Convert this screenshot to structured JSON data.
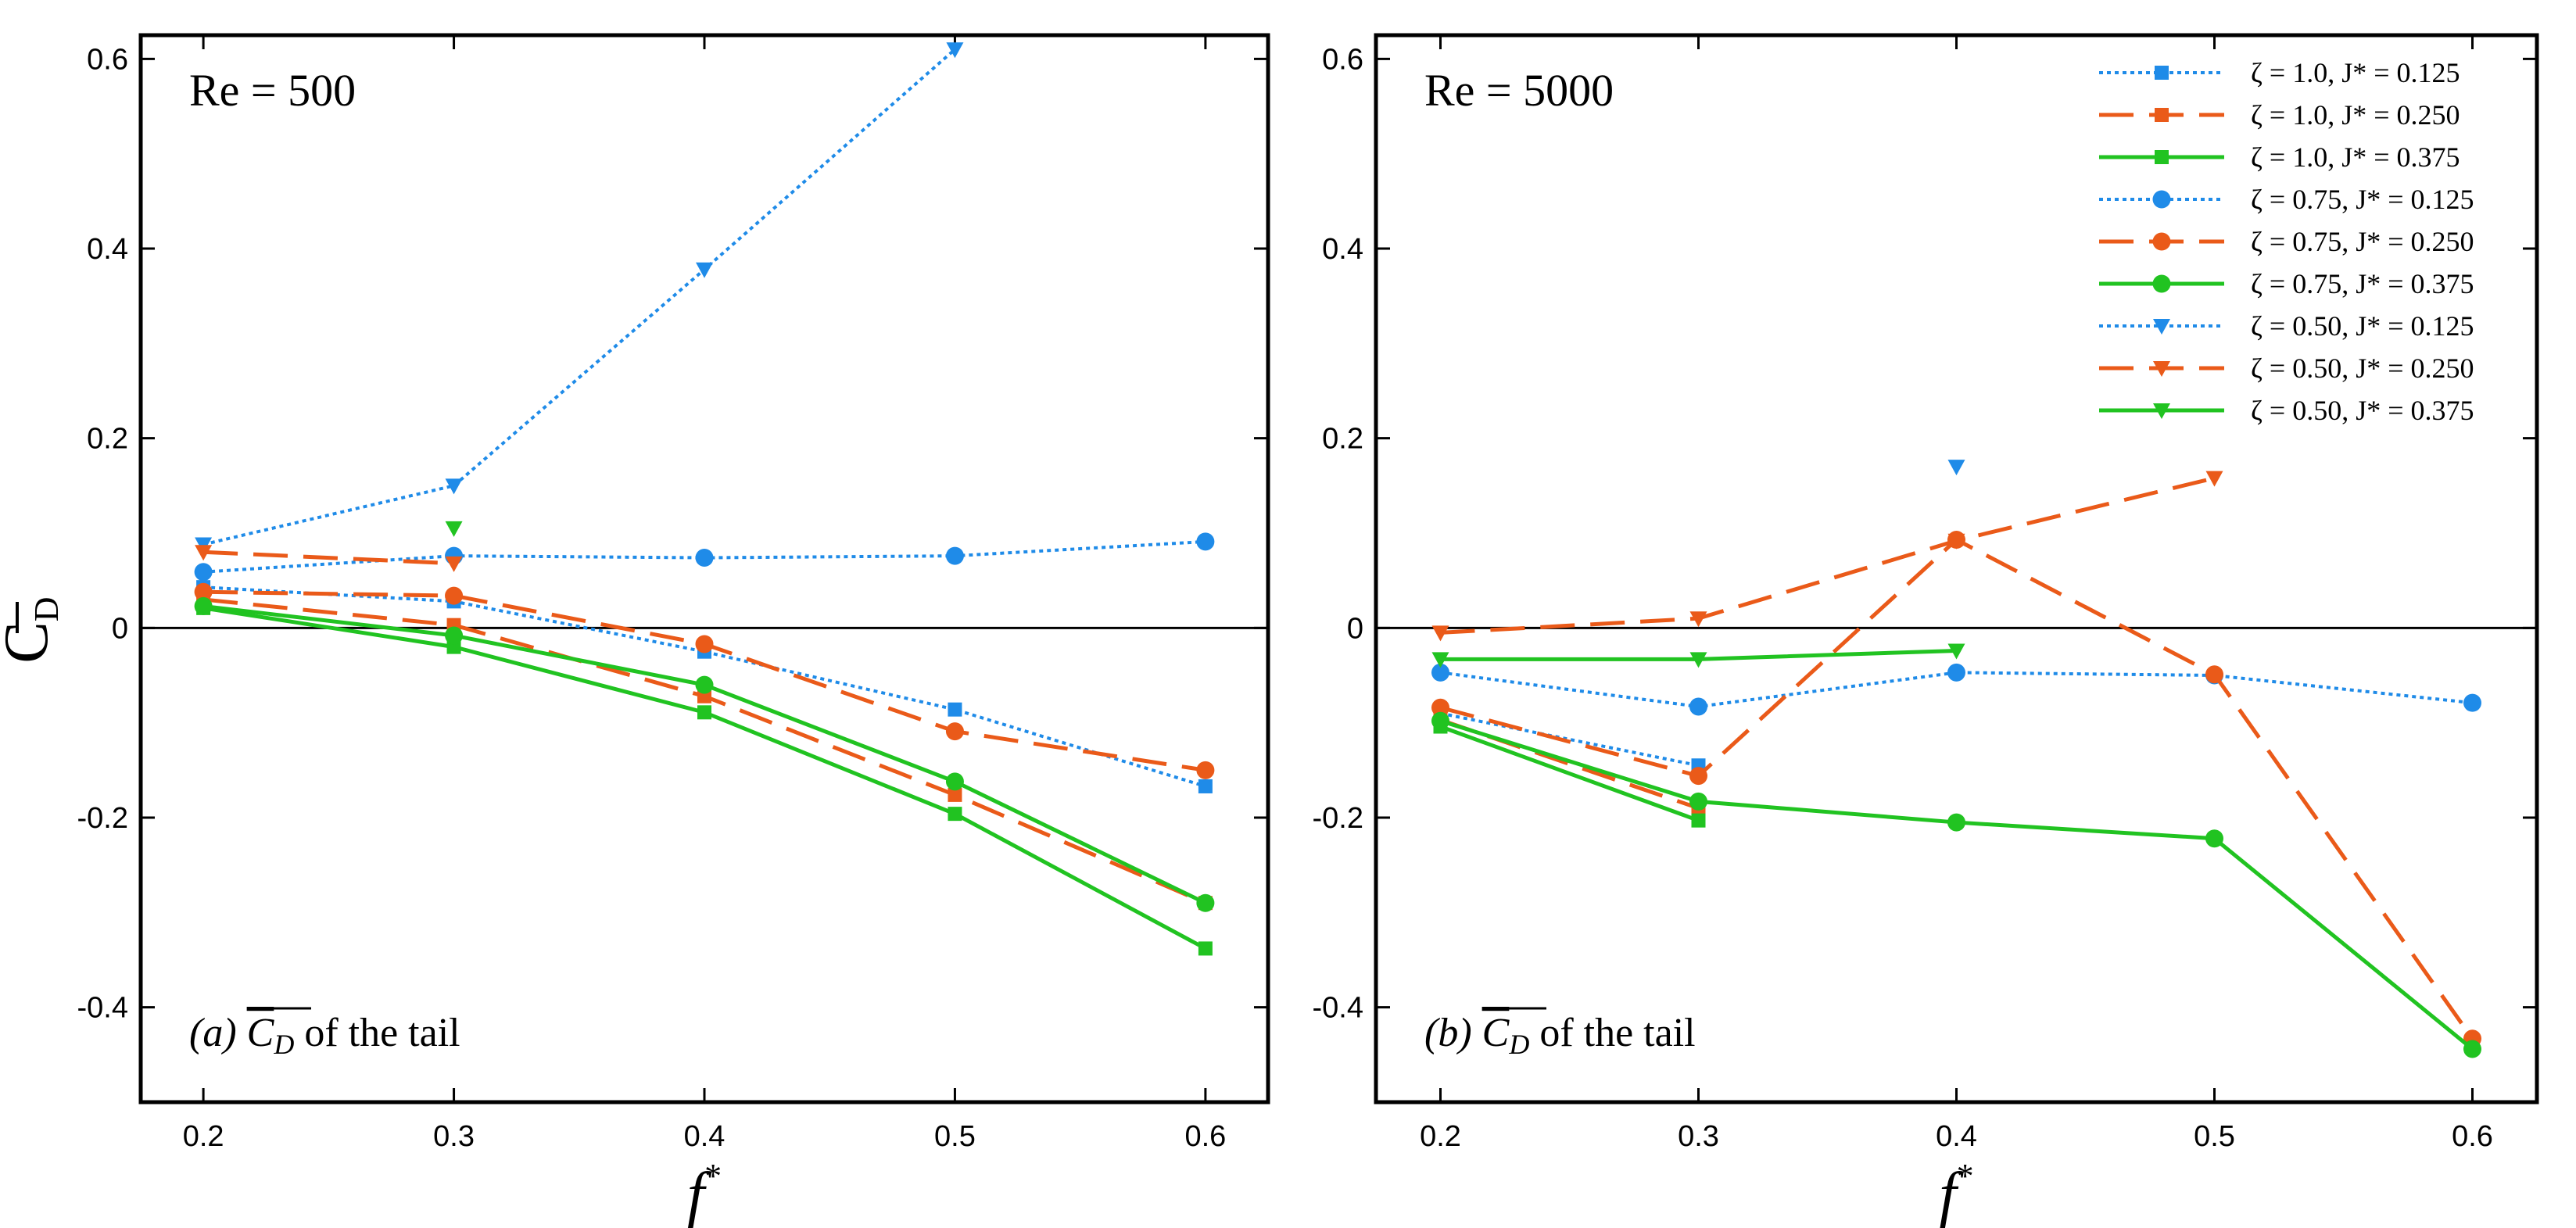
{
  "chart_data": [
    {
      "type": "line",
      "panel_id": "a",
      "title": "Re = 500",
      "caption_label": "(a)",
      "caption_symbol": "C_D",
      "caption_text": "of the tail",
      "xlabel": "f*",
      "ylabel": "C̄_D",
      "xlim": [
        0.175,
        0.625
      ],
      "ylim": [
        -0.5,
        0.625
      ],
      "xticks": [
        0.2,
        0.3,
        0.4,
        0.5,
        0.6
      ],
      "xtick_labels": [
        "0.2",
        "0.3",
        "0.4",
        "0.5",
        "0.6"
      ],
      "yticks": [
        -0.4,
        -0.2,
        0,
        0.2,
        0.4,
        0.6
      ],
      "ytick_labels": [
        "-0.4",
        "-0.2",
        "0",
        "0.2",
        "0.4",
        "0.6"
      ],
      "zero_line": true,
      "series": [
        {
          "name": "ζ = 1.0, J* = 0.125",
          "color": "#1f8be8",
          "style": "dotted",
          "marker": "square",
          "x": [
            0.2,
            0.3,
            0.4,
            0.5,
            0.6
          ],
          "y": [
            0.043,
            0.028,
            -0.025,
            -0.086,
            -0.167
          ]
        },
        {
          "name": "ζ = 1.0, J* = 0.250",
          "color": "#ea5a19",
          "style": "dashed",
          "marker": "square",
          "x": [
            0.2,
            0.3,
            0.4,
            0.5,
            0.6
          ],
          "y": [
            0.03,
            0.003,
            -0.072,
            -0.176,
            -0.29
          ]
        },
        {
          "name": "ζ = 1.0, J* = 0.375",
          "color": "#21c321",
          "style": "solid",
          "marker": "square",
          "x": [
            0.2,
            0.3,
            0.4,
            0.5,
            0.6
          ],
          "y": [
            0.021,
            -0.02,
            -0.089,
            -0.196,
            -0.338
          ]
        },
        {
          "name": "ζ = 0.75, J* = 0.125",
          "color": "#1f8be8",
          "style": "dotted",
          "marker": "circle",
          "x": [
            0.2,
            0.3,
            0.4,
            0.5,
            0.6
          ],
          "y": [
            0.059,
            0.076,
            0.074,
            0.076,
            0.091
          ]
        },
        {
          "name": "ζ = 0.75, J* = 0.250",
          "color": "#ea5a19",
          "style": "dashed",
          "marker": "circle",
          "x": [
            0.2,
            0.3,
            0.4,
            0.5,
            0.6
          ],
          "y": [
            0.038,
            0.034,
            -0.017,
            -0.109,
            -0.15
          ]
        },
        {
          "name": "ζ = 0.75, J* = 0.375",
          "color": "#21c321",
          "style": "solid",
          "marker": "circle",
          "x": [
            0.2,
            0.3,
            0.4,
            0.5,
            0.6
          ],
          "y": [
            0.023,
            -0.008,
            -0.06,
            -0.162,
            -0.29
          ]
        },
        {
          "name": "ζ = 0.50, J* = 0.125",
          "color": "#1f8be8",
          "style": "dotted",
          "marker": "triangle-down",
          "x": [
            0.2,
            0.3,
            0.4,
            0.5
          ],
          "y": [
            0.088,
            0.15,
            0.378,
            0.61
          ]
        },
        {
          "name": "ζ = 0.50, J* = 0.250",
          "color": "#ea5a19",
          "style": "dashed",
          "marker": "triangle-down",
          "x": [
            0.2,
            0.3
          ],
          "y": [
            0.08,
            0.068
          ]
        },
        {
          "name": "ζ = 0.50, J* = 0.375",
          "color": "#21c321",
          "style": "solid",
          "marker": "triangle-down",
          "x": [
            0.3
          ],
          "y": [
            0.105
          ]
        }
      ]
    },
    {
      "type": "line",
      "panel_id": "b",
      "title": "Re = 5000",
      "caption_label": "(b)",
      "caption_symbol": "C_D",
      "caption_text": "of the tail",
      "xlabel": "f*",
      "ylabel": "",
      "xlim": [
        0.175,
        0.625
      ],
      "ylim": [
        -0.5,
        0.625
      ],
      "xticks": [
        0.2,
        0.3,
        0.4,
        0.5,
        0.6
      ],
      "xtick_labels": [
        "0.2",
        "0.3",
        "0.4",
        "0.5",
        "0.6"
      ],
      "yticks": [
        -0.4,
        -0.2,
        0,
        0.2,
        0.4,
        0.6
      ],
      "ytick_labels": [
        "-0.4",
        "-0.2",
        "0",
        "0.2",
        "0.4",
        "0.6"
      ],
      "zero_line": true,
      "legend_position": "top-right",
      "series": [
        {
          "name": "ζ = 1.0, J* = 0.125",
          "color": "#1f8be8",
          "style": "dotted",
          "marker": "square",
          "x": [
            0.2,
            0.3
          ],
          "y": [
            -0.09,
            -0.145
          ]
        },
        {
          "name": "ζ = 1.0, J* = 0.250",
          "color": "#ea5a19",
          "style": "dashed",
          "marker": "square",
          "x": [
            0.2,
            0.3
          ],
          "y": [
            -0.097,
            -0.19
          ]
        },
        {
          "name": "ζ = 1.0, J* = 0.375",
          "color": "#21c321",
          "style": "solid",
          "marker": "square",
          "x": [
            0.2,
            0.3
          ],
          "y": [
            -0.104,
            -0.203
          ]
        },
        {
          "name": "ζ = 0.75, J* = 0.125",
          "color": "#1f8be8",
          "style": "dotted",
          "marker": "circle",
          "x": [
            0.2,
            0.3,
            0.4,
            0.5,
            0.6
          ],
          "y": [
            -0.047,
            -0.083,
            -0.047,
            -0.05,
            -0.079
          ]
        },
        {
          "name": "ζ = 0.75, J* = 0.250",
          "color": "#ea5a19",
          "style": "dashed",
          "marker": "circle",
          "x": [
            0.2,
            0.3,
            0.4,
            0.5,
            0.6
          ],
          "y": [
            -0.084,
            -0.156,
            0.093,
            -0.049,
            -0.433
          ]
        },
        {
          "name": "ζ = 0.75, J* = 0.375",
          "color": "#21c321",
          "style": "solid",
          "marker": "circle",
          "x": [
            0.2,
            0.3,
            0.4,
            0.5,
            0.6
          ],
          "y": [
            -0.098,
            -0.183,
            -0.205,
            -0.222,
            -0.444
          ]
        },
        {
          "name": "ζ = 0.50, J* = 0.125",
          "color": "#1f8be8",
          "style": "dotted",
          "marker": "triangle-down",
          "x": [
            0.4
          ],
          "y": [
            0.17
          ]
        },
        {
          "name": "ζ = 0.50, J* = 0.250",
          "color": "#ea5a19",
          "style": "dashed",
          "marker": "triangle-down",
          "x": [
            0.2,
            0.3,
            0.4,
            0.5
          ],
          "y": [
            -0.005,
            0.01,
            0.092,
            0.158
          ]
        },
        {
          "name": "ζ = 0.50, J* = 0.375",
          "color": "#21c321",
          "style": "solid",
          "marker": "triangle-down",
          "x": [
            0.2,
            0.3,
            0.4
          ],
          "y": [
            -0.033,
            -0.033,
            -0.024
          ]
        }
      ]
    }
  ]
}
